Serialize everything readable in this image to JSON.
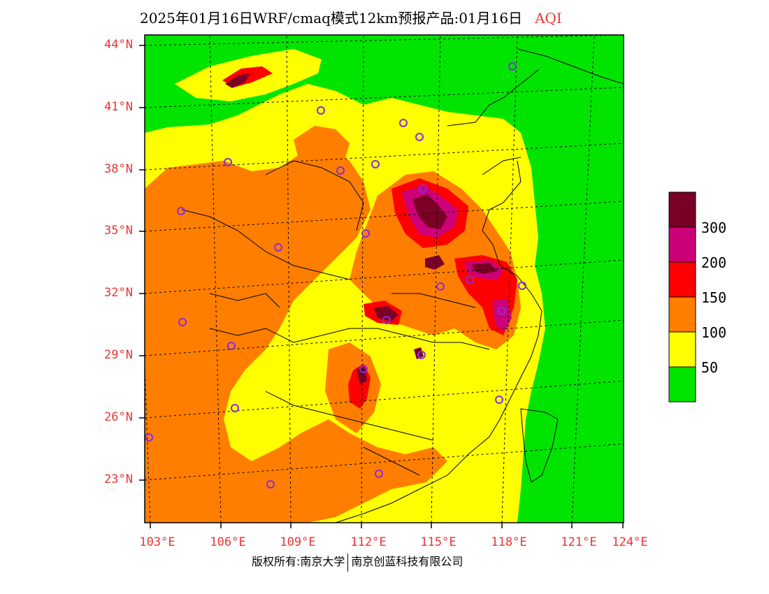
{
  "header": {
    "title": "2025年01月16日WRF/cmaq模式12km预报产品:01月16日",
    "variable": "AQI"
  },
  "axes": {
    "lat_labels": [
      "44°N",
      "41°N",
      "38°N",
      "35°N",
      "32°N",
      "29°N",
      "26°N",
      "23°N"
    ],
    "lon_labels": [
      "103°E",
      "106°E",
      "109°E",
      "112°E",
      "115°E",
      "118°E",
      "121°E",
      "124°E"
    ]
  },
  "legend": {
    "levels": [
      "300",
      "200",
      "150",
      "100",
      "50"
    ],
    "colors": {
      "over300": "#7a0026",
      "200_300": "#cc0077",
      "150_200": "#ff0000",
      "100_150": "#ff7e00",
      "50_100": "#ffff00",
      "0_50": "#00e400"
    }
  },
  "footer": {
    "copyright": "版权所有:南京大学",
    "company": "南京创蓝科技有限公司"
  }
}
